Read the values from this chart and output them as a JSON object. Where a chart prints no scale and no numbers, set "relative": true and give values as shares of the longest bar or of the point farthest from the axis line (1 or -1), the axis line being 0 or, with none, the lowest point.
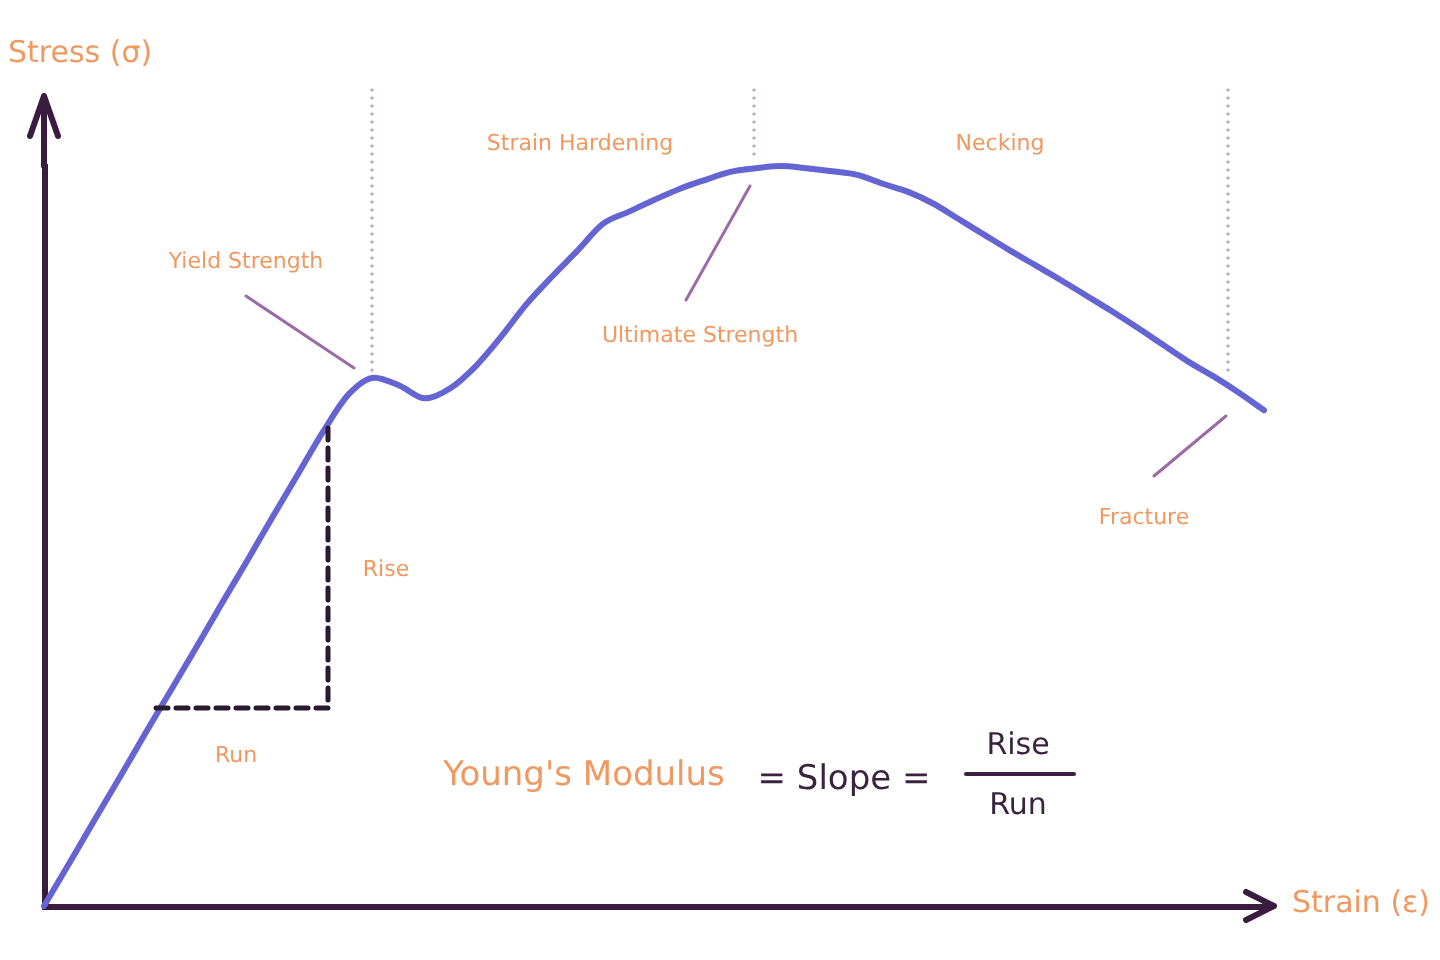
{
  "chart_data": {
    "type": "line",
    "relative": true,
    "xlabel": "Strain (ε)",
    "ylabel": "Stress (σ)",
    "categories": [
      null,
      null,
      null,
      null,
      null,
      null,
      null,
      null,
      null,
      null,
      null,
      null,
      null,
      null,
      null,
      null,
      null,
      null,
      null,
      null,
      null,
      null,
      null,
      null,
      null,
      null,
      null,
      null,
      null,
      null,
      null,
      null,
      null,
      null,
      null,
      null,
      null,
      null,
      null,
      null,
      null,
      null,
      null,
      null,
      null,
      null,
      null,
      null,
      null
    ],
    "values": [
      0,
      0.058,
      0.117,
      0.175,
      0.234,
      0.292,
      0.35,
      0.409,
      0.467,
      0.526,
      0.584,
      0.642,
      0.692,
      0.714,
      0.703,
      0.686,
      0.7,
      0.73,
      0.77,
      0.814,
      0.851,
      0.886,
      0.922,
      0.938,
      0.954,
      0.969,
      0.981,
      0.992,
      0.997,
      1,
      0.997,
      0.993,
      0.988,
      0.976,
      0.965,
      0.949,
      0.928,
      0.907,
      0.886,
      0.866,
      0.846,
      0.825,
      0.804,
      0.782,
      0.759,
      0.736,
      0.716,
      0.694,
      0.67
    ],
    "color": "#6464d2",
    "marker": "none",
    "legend": false,
    "annotations": [
      "Yield Strength",
      "Strain Hardening",
      "Ultimate Strength",
      "Necking",
      "Fracture",
      "Rise",
      "Run",
      "Young's Modulus",
      "= Slope =",
      "Rise",
      "Run"
    ]
  }
}
